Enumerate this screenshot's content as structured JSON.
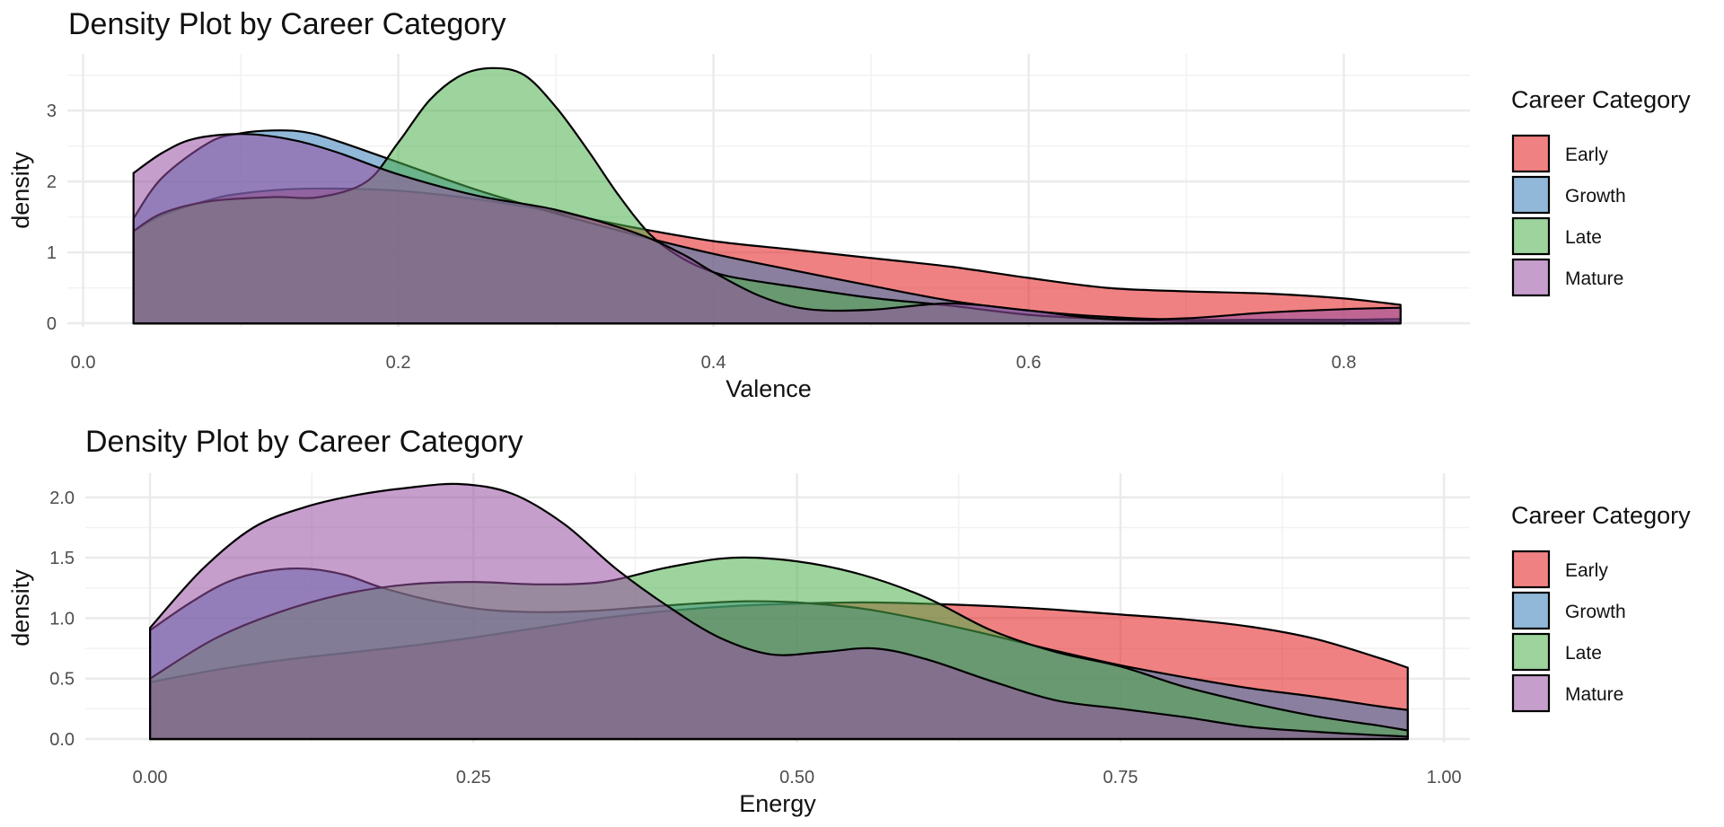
{
  "colors": {
    "Early": "#E41A1C",
    "Growth": "#377EB8",
    "Late": "#4DAF4A",
    "Mature": "#984EA3",
    "outline": "#000000",
    "grid_major": "#EBEBEB",
    "grid_minor": "#F2F2F2"
  },
  "fill_alpha": 0.55,
  "chart_data": [
    {
      "type": "area",
      "title": "Density Plot by Career Category",
      "xlabel": "Valence",
      "ylabel": "density",
      "xlim": [
        -0.01,
        0.88
      ],
      "ylim": [
        -0.05,
        3.8
      ],
      "x_ticks": [
        0.0,
        0.2,
        0.4,
        0.6,
        0.8
      ],
      "x_tick_labels": [
        "0.0",
        "0.2",
        "0.4",
        "0.6",
        "0.8"
      ],
      "y_ticks": [
        0,
        1,
        2,
        3
      ],
      "y_tick_labels": [
        "0",
        "1",
        "2",
        "3"
      ],
      "grid": true,
      "legend": {
        "title": "Career Category",
        "position": "right",
        "entries": [
          "Early",
          "Growth",
          "Late",
          "Mature"
        ]
      },
      "series": [
        {
          "name": "Early",
          "x": [
            0.032,
            0.05,
            0.08,
            0.1,
            0.13,
            0.16,
            0.2,
            0.25,
            0.3,
            0.35,
            0.4,
            0.45,
            0.5,
            0.55,
            0.6,
            0.65,
            0.7,
            0.75,
            0.8,
            0.836
          ],
          "y": [
            1.3,
            1.52,
            1.74,
            1.83,
            1.89,
            1.9,
            1.87,
            1.75,
            1.57,
            1.35,
            1.16,
            1.04,
            0.92,
            0.8,
            0.64,
            0.5,
            0.45,
            0.42,
            0.35,
            0.26
          ]
        },
        {
          "name": "Growth",
          "x": [
            0.032,
            0.05,
            0.08,
            0.1,
            0.12,
            0.14,
            0.16,
            0.2,
            0.25,
            0.3,
            0.35,
            0.4,
            0.45,
            0.5,
            0.55,
            0.6,
            0.65,
            0.7,
            0.75,
            0.8,
            0.836
          ],
          "y": [
            1.48,
            2.05,
            2.55,
            2.68,
            2.72,
            2.7,
            2.58,
            2.27,
            1.88,
            1.55,
            1.25,
            0.98,
            0.75,
            0.53,
            0.32,
            0.18,
            0.09,
            0.05,
            0.05,
            0.05,
            0.06
          ]
        },
        {
          "name": "Late",
          "x": [
            0.032,
            0.05,
            0.08,
            0.12,
            0.15,
            0.18,
            0.2,
            0.22,
            0.24,
            0.26,
            0.28,
            0.3,
            0.32,
            0.34,
            0.36,
            0.38,
            0.4,
            0.42,
            0.45,
            0.5,
            0.55,
            0.6,
            0.65,
            0.7,
            0.75,
            0.8,
            0.836
          ],
          "y": [
            1.3,
            1.55,
            1.72,
            1.78,
            1.78,
            2.0,
            2.55,
            3.15,
            3.5,
            3.6,
            3.5,
            3.05,
            2.45,
            1.8,
            1.25,
            0.92,
            0.72,
            0.62,
            0.52,
            0.36,
            0.25,
            0.12,
            0.06,
            0.03,
            0.02,
            0.02,
            0.02
          ]
        },
        {
          "name": "Mature",
          "x": [
            0.032,
            0.05,
            0.07,
            0.1,
            0.13,
            0.16,
            0.2,
            0.25,
            0.3,
            0.35,
            0.38,
            0.4,
            0.43,
            0.46,
            0.5,
            0.55,
            0.6,
            0.65,
            0.7,
            0.75,
            0.8,
            0.836
          ],
          "y": [
            2.12,
            2.4,
            2.6,
            2.67,
            2.6,
            2.42,
            2.1,
            1.8,
            1.6,
            1.28,
            0.98,
            0.72,
            0.38,
            0.2,
            0.19,
            0.28,
            0.18,
            0.06,
            0.07,
            0.15,
            0.2,
            0.22
          ]
        }
      ]
    },
    {
      "type": "area",
      "title": "Density Plot by Career Category",
      "xlabel": "Energy",
      "ylabel": "density",
      "xlim": [
        -0.05,
        1.02
      ],
      "ylim": [
        -0.03,
        2.2
      ],
      "x_ticks": [
        0.0,
        0.25,
        0.5,
        0.75,
        1.0
      ],
      "x_tick_labels": [
        "0.00",
        "0.25",
        "0.50",
        "0.75",
        "1.00"
      ],
      "y_ticks": [
        0.0,
        0.5,
        1.0,
        1.5,
        2.0
      ],
      "y_tick_labels": [
        "0.0",
        "0.5",
        "1.0",
        "1.5",
        "2.0"
      ],
      "grid": true,
      "legend": {
        "title": "Career Category",
        "position": "right",
        "entries": [
          "Early",
          "Growth",
          "Late",
          "Mature"
        ]
      },
      "series": [
        {
          "name": "Early",
          "x": [
            0.0,
            0.05,
            0.1,
            0.15,
            0.2,
            0.25,
            0.3,
            0.35,
            0.4,
            0.45,
            0.5,
            0.55,
            0.6,
            0.65,
            0.7,
            0.75,
            0.8,
            0.85,
            0.9,
            0.95,
            0.972
          ],
          "y": [
            0.47,
            0.57,
            0.65,
            0.71,
            0.77,
            0.84,
            0.92,
            1.0,
            1.06,
            1.1,
            1.12,
            1.13,
            1.12,
            1.1,
            1.07,
            1.03,
            0.99,
            0.93,
            0.83,
            0.67,
            0.59
          ]
        },
        {
          "name": "Growth",
          "x": [
            0.0,
            0.03,
            0.06,
            0.09,
            0.12,
            0.15,
            0.18,
            0.22,
            0.26,
            0.3,
            0.34,
            0.38,
            0.42,
            0.46,
            0.5,
            0.55,
            0.6,
            0.65,
            0.7,
            0.75,
            0.8,
            0.85,
            0.9,
            0.95,
            0.972
          ],
          "y": [
            0.9,
            1.12,
            1.3,
            1.39,
            1.41,
            1.36,
            1.25,
            1.14,
            1.07,
            1.05,
            1.06,
            1.09,
            1.12,
            1.14,
            1.13,
            1.08,
            0.98,
            0.86,
            0.73,
            0.61,
            0.51,
            0.42,
            0.35,
            0.27,
            0.24
          ]
        },
        {
          "name": "Late",
          "x": [
            0.0,
            0.05,
            0.1,
            0.15,
            0.2,
            0.25,
            0.3,
            0.35,
            0.4,
            0.45,
            0.5,
            0.55,
            0.6,
            0.65,
            0.7,
            0.75,
            0.8,
            0.85,
            0.9,
            0.95,
            0.972
          ],
          "y": [
            0.5,
            0.83,
            1.05,
            1.2,
            1.28,
            1.3,
            1.28,
            1.3,
            1.42,
            1.5,
            1.47,
            1.36,
            1.17,
            0.9,
            0.72,
            0.6,
            0.43,
            0.3,
            0.19,
            0.11,
            0.07
          ]
        },
        {
          "name": "Mature",
          "x": [
            0.0,
            0.04,
            0.08,
            0.12,
            0.16,
            0.2,
            0.24,
            0.28,
            0.32,
            0.36,
            0.4,
            0.44,
            0.48,
            0.52,
            0.56,
            0.6,
            0.65,
            0.7,
            0.75,
            0.8,
            0.85,
            0.9,
            0.95,
            0.972
          ],
          "y": [
            0.92,
            1.4,
            1.75,
            1.92,
            2.02,
            2.08,
            2.11,
            2.03,
            1.78,
            1.41,
            1.1,
            0.84,
            0.7,
            0.72,
            0.75,
            0.66,
            0.48,
            0.32,
            0.25,
            0.18,
            0.1,
            0.06,
            0.03,
            0.02
          ]
        }
      ]
    }
  ]
}
